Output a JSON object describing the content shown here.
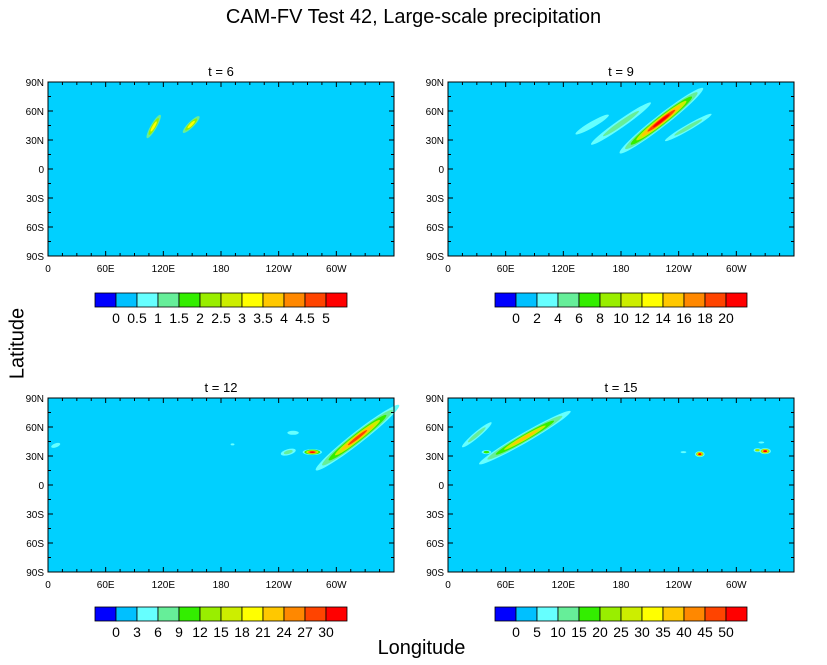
{
  "title": "CAM-FV Test 42, Large-scale precipitation",
  "ylabel": "Latitude",
  "xlabel": "Longitude",
  "colors": {
    "background": "#00d0ff",
    "levels": [
      "#0000ff",
      "#00c0ff",
      "#66ffff",
      "#66ee99",
      "#33ee00",
      "#99ee00",
      "#ccee00",
      "#ffff00",
      "#ffc800",
      "#ff8800",
      "#ff4400",
      "#ff0000"
    ]
  },
  "chart_data": [
    {
      "type": "heatmap",
      "title": "t = 6",
      "x_ticks": [
        "0",
        "60E",
        "120E",
        "180",
        "120W",
        "60W"
      ],
      "y_ticks": [
        "90N",
        "60N",
        "30N",
        "0",
        "30S",
        "60S",
        "90S"
      ],
      "colorbar_labels": [
        "0",
        "0.5",
        "1",
        "1.5",
        "2",
        "2.5",
        "3",
        "3.5",
        "4",
        "4.5",
        "5"
      ],
      "features": [
        {
          "lon": 110,
          "lat": 44,
          "len": 14,
          "wid": 3,
          "angle": -60,
          "levels": [
            3,
            5,
            7
          ]
        },
        {
          "lon": 149,
          "lat": 46,
          "len": 12,
          "wid": 3,
          "angle": -45,
          "levels": [
            3,
            5,
            7
          ]
        }
      ]
    },
    {
      "type": "heatmap",
      "title": "t = 9",
      "x_ticks": [
        "0",
        "60E",
        "120E",
        "180",
        "120W",
        "60W"
      ],
      "y_ticks": [
        "90N",
        "60N",
        "30N",
        "0",
        "30S",
        "60S",
        "90S"
      ],
      "colorbar_labels": [
        "0",
        "2",
        "4",
        "6",
        "8",
        "10",
        "12",
        "14",
        "16",
        "18",
        "20"
      ],
      "features": [
        {
          "lon": 150,
          "lat": 46,
          "len": 20,
          "wid": 3,
          "angle": -30,
          "levels": [
            2
          ]
        },
        {
          "lon": 180,
          "lat": 47,
          "len": 38,
          "wid": 4,
          "angle": -35,
          "levels": [
            2,
            3
          ]
        },
        {
          "lon": 222,
          "lat": 50,
          "len": 55,
          "wid": 6,
          "angle": -38,
          "levels": [
            2,
            3,
            4,
            6,
            8,
            10,
            11
          ]
        },
        {
          "lon": 250,
          "lat": 43,
          "len": 28,
          "wid": 3,
          "angle": -30,
          "levels": [
            2,
            3
          ]
        }
      ]
    },
    {
      "type": "heatmap",
      "title": "t = 12",
      "x_ticks": [
        "0",
        "60E",
        "120E",
        "180",
        "120W",
        "60W"
      ],
      "y_ticks": [
        "90N",
        "60N",
        "30N",
        "0",
        "30S",
        "60S",
        "90S"
      ],
      "colorbar_labels": [
        "0",
        "3",
        "6",
        "9",
        "12",
        "15",
        "18",
        "21",
        "24",
        "27",
        "30"
      ],
      "features": [
        {
          "lon": 8,
          "lat": 41,
          "len": 5,
          "wid": 2,
          "angle": -20,
          "levels": [
            2
          ]
        },
        {
          "lon": 192,
          "lat": 42,
          "len": 2,
          "wid": 1,
          "angle": 0,
          "levels": [
            2
          ]
        },
        {
          "lon": 255,
          "lat": 54,
          "len": 6,
          "wid": 2,
          "angle": 0,
          "levels": [
            2
          ]
        },
        {
          "lon": 250,
          "lat": 34,
          "len": 8,
          "wid": 3,
          "angle": -15,
          "levels": [
            2,
            3
          ]
        },
        {
          "lon": 275,
          "lat": 34,
          "len": 10,
          "wid": 3,
          "angle": 0,
          "levels": [
            2,
            4,
            6,
            9,
            11
          ]
        },
        {
          "lon": 322,
          "lat": 49,
          "len": 55,
          "wid": 6,
          "angle": -38,
          "levels": [
            2,
            3,
            4,
            6,
            8,
            10
          ]
        }
      ]
    },
    {
      "type": "heatmap",
      "title": "t = 15",
      "x_ticks": [
        "0",
        "60E",
        "120E",
        "180",
        "120W",
        "60W"
      ],
      "y_ticks": [
        "90N",
        "60N",
        "30N",
        "0",
        "30S",
        "60S",
        "90S"
      ],
      "colorbar_labels": [
        "0",
        "5",
        "10",
        "15",
        "20",
        "25",
        "30",
        "35",
        "40",
        "45",
        "50"
      ],
      "features": [
        {
          "lon": 30,
          "lat": 52,
          "len": 20,
          "wid": 3,
          "angle": -40,
          "levels": [
            2,
            3
          ]
        },
        {
          "lon": 40,
          "lat": 34,
          "len": 5,
          "wid": 2,
          "angle": 0,
          "levels": [
            2,
            4
          ]
        },
        {
          "lon": 80,
          "lat": 49,
          "len": 55,
          "wid": 5,
          "angle": -30,
          "levels": [
            2,
            3,
            4,
            6,
            8
          ]
        },
        {
          "lon": 245,
          "lat": 34,
          "len": 3,
          "wid": 1,
          "angle": 0,
          "levels": [
            2
          ]
        },
        {
          "lon": 262,
          "lat": 32,
          "len": 5,
          "wid": 3,
          "angle": 0,
          "levels": [
            2,
            5,
            8,
            11
          ]
        },
        {
          "lon": 322,
          "lat": 36,
          "len": 4,
          "wid": 2,
          "angle": 0,
          "levels": [
            2,
            5
          ]
        },
        {
          "lon": 330,
          "lat": 35,
          "len": 6,
          "wid": 3,
          "angle": 0,
          "levels": [
            2,
            5,
            8,
            11
          ]
        },
        {
          "lon": 326,
          "lat": 44,
          "len": 3,
          "wid": 1,
          "angle": 0,
          "levels": [
            2
          ]
        }
      ]
    }
  ]
}
